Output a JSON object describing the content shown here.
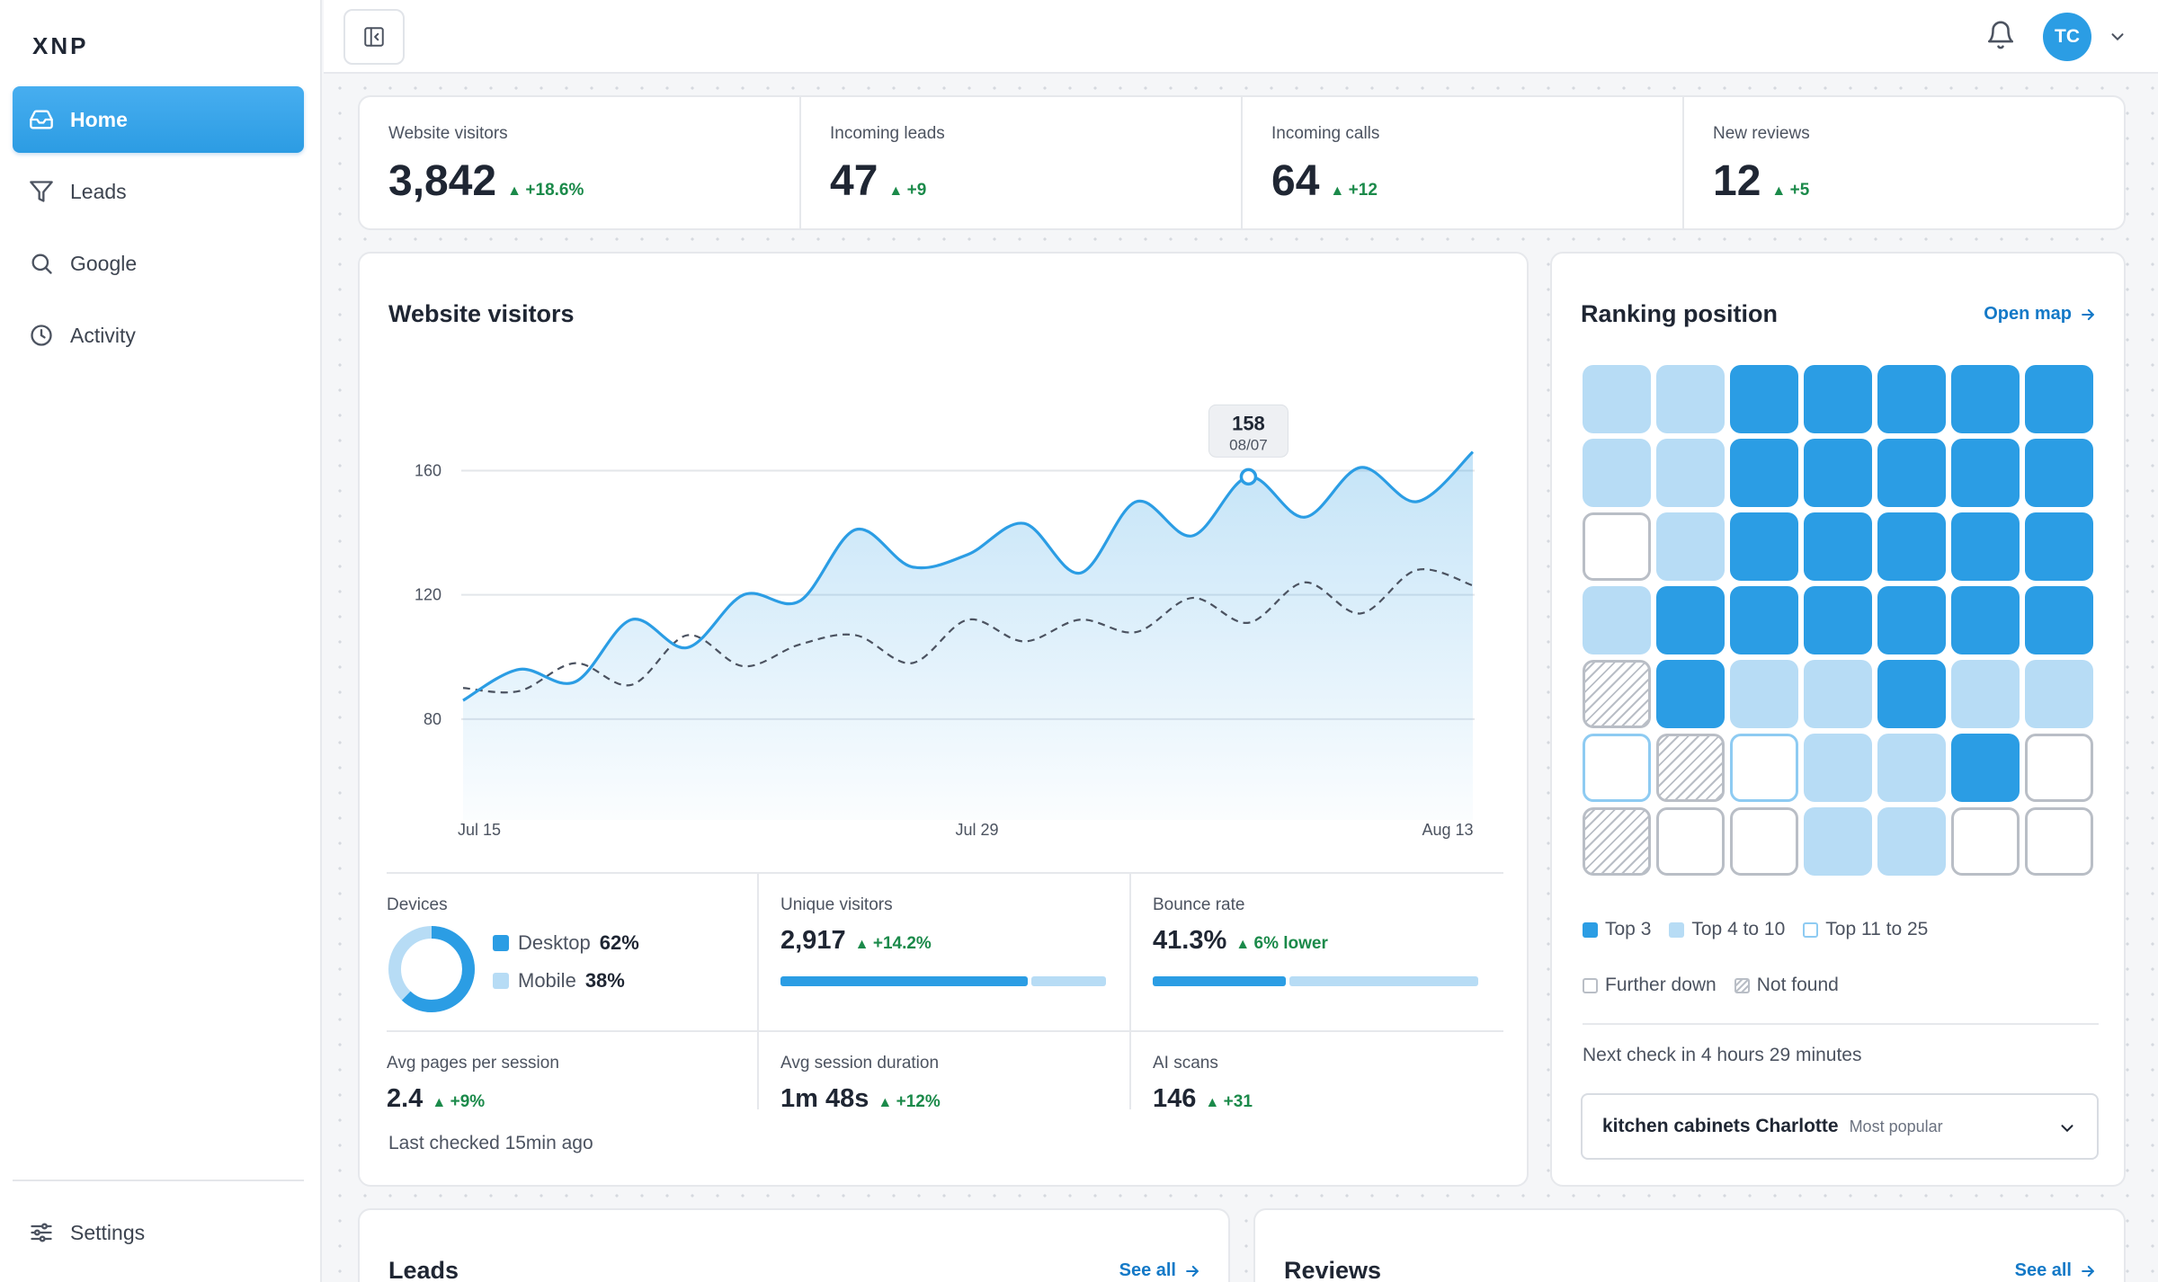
{
  "app": {
    "logo": "XNP"
  },
  "sidebar": {
    "items": [
      {
        "label": "Home",
        "icon": "inbox-icon",
        "active": true
      },
      {
        "label": "Leads",
        "icon": "filter-icon"
      },
      {
        "label": "Google",
        "icon": "search-icon"
      },
      {
        "label": "Activity",
        "icon": "clock-icon"
      }
    ],
    "settings_label": "Settings"
  },
  "topbar": {
    "avatar_initials": "TC"
  },
  "stats": [
    {
      "label": "Website visitors",
      "value": "3,842",
      "delta": "+18.6%"
    },
    {
      "label": "Incoming leads",
      "value": "47",
      "delta": "+9"
    },
    {
      "label": "Incoming calls",
      "value": "64",
      "delta": "+12"
    },
    {
      "label": "New reviews",
      "value": "12",
      "delta": "+5"
    }
  ],
  "visitors": {
    "title": "Website visitors",
    "tooltip": {
      "value": "158",
      "date": "08/07"
    },
    "devices": {
      "label": "Devices",
      "desktop_label": "Desktop",
      "desktop_pct": "62%",
      "mobile_label": "Mobile",
      "mobile_pct": "38%"
    },
    "unique": {
      "label": "Unique visitors",
      "value": "2,917",
      "delta": "+14.2%",
      "fill": 0.76
    },
    "bounce": {
      "label": "Bounce rate",
      "value": "41.3%",
      "delta": "6% lower",
      "fill": 0.41
    },
    "pages": {
      "label": "Avg pages per session",
      "value": "2.4",
      "delta": "+9%"
    },
    "duration": {
      "label": "Avg session duration",
      "value": "1m 48s",
      "delta": "+12%"
    },
    "ai": {
      "label": "AI scans",
      "value": "146",
      "delta": "+31"
    },
    "last_checked": "Last checked 15min ago"
  },
  "chart_data": {
    "type": "area",
    "x_ticks": [
      "Jul 15",
      "Jul 29",
      "Aug 13"
    ],
    "y_ticks": [
      80,
      120,
      160
    ],
    "ylim": [
      62,
      172
    ],
    "series": [
      {
        "style": "solid-area",
        "values": [
          86,
          96,
          92,
          112,
          103,
          120,
          118,
          141,
          129,
          133,
          143,
          127,
          150,
          139,
          158,
          145,
          161,
          150,
          166
        ]
      },
      {
        "style": "dashed",
        "values": [
          90,
          89,
          98,
          91,
          107,
          97,
          104,
          107,
          98,
          112,
          105,
          112,
          108,
          119,
          111,
          124,
          114,
          128,
          123
        ]
      }
    ]
  },
  "ranking": {
    "title": "Ranking position",
    "open_map": "Open map",
    "grid": [
      [
        "top10",
        "top10",
        "top3",
        "top3",
        "top3",
        "top3",
        "top3"
      ],
      [
        "top10",
        "top10",
        "top3",
        "top3",
        "top3",
        "top3",
        "top3"
      ],
      [
        "further",
        "top10",
        "top3",
        "top3",
        "top3",
        "top3",
        "top3"
      ],
      [
        "top10",
        "top3",
        "top3",
        "top3",
        "top3",
        "top3",
        "top3"
      ],
      [
        "notfound",
        "top3",
        "top10",
        "top10",
        "top3",
        "top10",
        "top10"
      ],
      [
        "top25",
        "notfound",
        "top25",
        "top10",
        "top10",
        "top3",
        "further"
      ],
      [
        "notfound",
        "further",
        "further",
        "top10",
        "top10",
        "further",
        "further"
      ]
    ],
    "legend": {
      "top3": "Top 3",
      "top10": "Top 4 to 10",
      "top25": "Top 11 to 25",
      "further": "Further down",
      "notfound": "Not found"
    },
    "next_check": "Next check in 4 hours 29 minutes",
    "keyword": "kitchen cabinets Charlotte",
    "keyword_sub": "Most popular"
  },
  "leads": {
    "title": "Leads",
    "see_all": "See all"
  },
  "reviews": {
    "title": "Reviews",
    "see_all": "See all"
  },
  "colors": {
    "accent": "#2b9de4",
    "light": "#b7dcf5",
    "positive": "#1b8a4a",
    "link": "#1479c7"
  }
}
